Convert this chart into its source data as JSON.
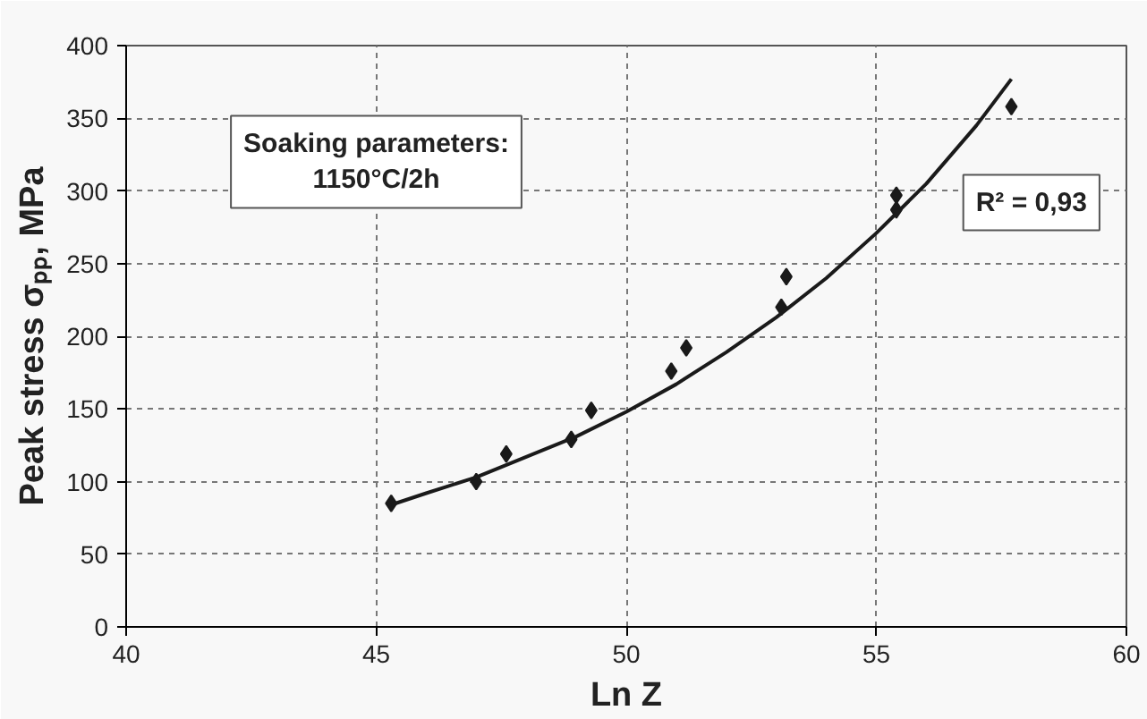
{
  "chart_data": {
    "type": "scatter",
    "xlabel": "Ln Z",
    "ylabel": "Peak stress σₚₚ, MPa",
    "xlim": [
      40,
      60
    ],
    "xticks": [
      40,
      45,
      50,
      55,
      60
    ],
    "ylim": [
      0,
      400
    ],
    "yticks": [
      0,
      50,
      100,
      150,
      200,
      250,
      300,
      350,
      400
    ],
    "grid": true,
    "marker": "diamond",
    "annotations": [
      "Soaking parameters:\n1150°C/2h",
      "R² = 0,93"
    ],
    "series": [
      {
        "color": "#1a1a1a",
        "x": [
          45.3,
          47.0,
          47.6,
          48.9,
          49.3,
          50.9,
          51.2,
          53.1,
          53.2,
          55.4,
          55.4,
          57.7
        ],
        "values": [
          85,
          100,
          119,
          129,
          149,
          176,
          192,
          220,
          241,
          297,
          287,
          358
        ]
      },
      {
        "type": "line",
        "color": "#1a1a1a",
        "marker": "none",
        "x": [
          45.3,
          46,
          47,
          48,
          49,
          50,
          51,
          52,
          53,
          54,
          55,
          56,
          57,
          57.7
        ],
        "values": [
          84,
          92,
          103,
          117,
          131,
          148,
          167,
          189,
          213,
          240,
          271,
          305,
          345,
          377
        ]
      }
    ]
  }
}
